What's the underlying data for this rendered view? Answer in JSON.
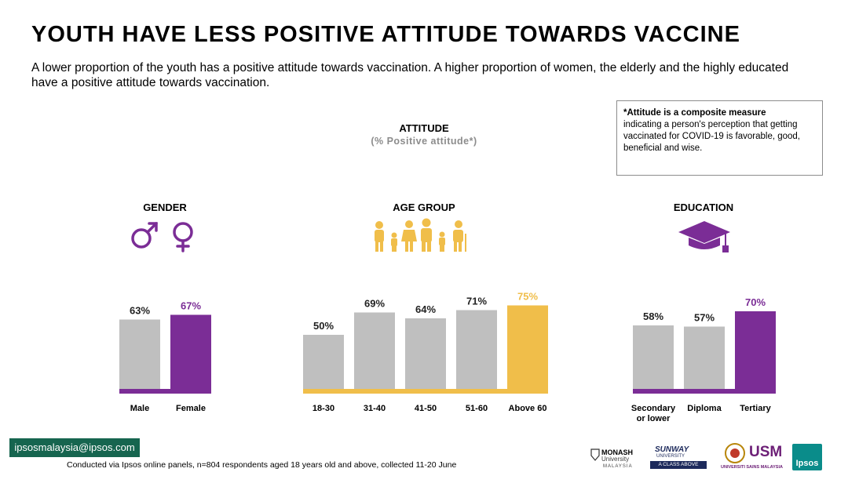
{
  "page": {
    "title": "YOUTH HAVE LESS POSITIVE ATTITUDE TOWARDS VACCINE",
    "subtitle": "A lower proportion of the youth has a positive attitude towards vaccination. A higher proportion of women, the elderly and the highly educated have a positive attitude towards vaccination.",
    "note_bold": "*Attitude is a composite measure",
    "note_text": "indicating a person's perception that getting vaccinated for COVID-19 is favorable, good, beneficial and wise.",
    "contact_email": "ipsosmalaysia@ipsos.com",
    "footer_text": "Conducted via Ipsos online panels, n=804 respondents aged 18 years old and above, collected 11-20 June",
    "logos": {
      "monash_name": "MONASH",
      "monash_sub": "University",
      "monash_country": "MALAYSIA",
      "sunway_name": "SUNWAY",
      "sunway_sub": "UNIVERSITY",
      "sunway_tag": "A CLASS ABOVE",
      "usm_name": "USM",
      "usm_sub": "UNIVERSITI SAINS MALAYSIA",
      "ipsos_name": "Ipsos"
    },
    "icons": {
      "gender": [
        "male-symbol-icon",
        "female-symbol-icon"
      ],
      "age": "family-group-icon",
      "education": "graduation-cap-icon"
    }
  },
  "colors": {
    "grey_bar": "#bfbfbf",
    "purple": "#7b2d96",
    "gold": "#f0be4a",
    "contact_bg": "#16654f"
  },
  "chart_data": [
    {
      "type": "bar",
      "title": "ATTITUDE",
      "subtitle": "(% Positive attitude*)",
      "group": "GENDER",
      "categories": [
        "Male",
        "Female"
      ],
      "values": [
        63,
        67
      ],
      "labels": [
        "63%",
        "67%"
      ],
      "highlight_index": 1,
      "highlight_color": "#7b2d96"
    },
    {
      "type": "bar",
      "group": "AGE GROUP",
      "categories": [
        "18-30",
        "31-40",
        "41-50",
        "51-60",
        "Above 60"
      ],
      "values": [
        50,
        69,
        64,
        71,
        75
      ],
      "labels": [
        "50%",
        "69%",
        "64%",
        "71%",
        "75%"
      ],
      "highlight_index": 4,
      "highlight_color": "#f0be4a"
    },
    {
      "type": "bar",
      "group": "EDUCATION",
      "categories": [
        "Secondary or lower",
        "Diploma",
        "Tertiary"
      ],
      "category_lines": [
        [
          "Secondary",
          "or lower"
        ],
        [
          "Diploma"
        ],
        [
          "Tertiary"
        ]
      ],
      "values": [
        58,
        57,
        70
      ],
      "labels": [
        "58%",
        "57%",
        "70%"
      ],
      "highlight_index": 2,
      "highlight_color": "#7b2d96"
    }
  ]
}
